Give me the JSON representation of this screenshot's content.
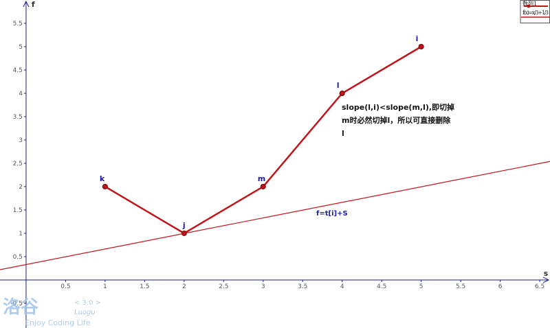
{
  "chart_data": {
    "type": "line",
    "xlabel": "s",
    "ylabel": "f",
    "xlim": [
      -0.33,
      6.63
    ],
    "ylim": [
      -1.03,
      6.0
    ],
    "xticks": [
      0.5,
      1,
      1.5,
      2,
      2.5,
      3,
      3.5,
      4,
      4.5,
      5,
      5.5,
      6,
      6.5
    ],
    "yticks": [
      -0.5,
      0.5,
      1,
      1.5,
      2,
      2.5,
      3,
      3.5,
      4,
      4.5,
      5,
      5.5
    ],
    "series": [
      {
        "name": "数列1",
        "color": "#c0141a",
        "x": [
          1,
          2,
          3,
          4,
          5
        ],
        "values": [
          2,
          1,
          2,
          4,
          5
        ],
        "point_labels": [
          "k",
          "j",
          "m",
          "l",
          "i"
        ]
      },
      {
        "name": "f(x)=x/3+1/3",
        "color": "#c0141a",
        "x": [
          -0.33,
          6.63
        ],
        "values": [
          0.22,
          2.54
        ]
      }
    ],
    "line_label": "f=t[i]+S",
    "annotation": [
      "slope(l,i)<slope(m,l),即切掉",
      "m时必然切掉l，所以可直接删除",
      "l"
    ]
  },
  "watermark": {
    "logo": "洛谷",
    "version": "< 3.0 >",
    "brand": "Luogu",
    "slogan": "Enjoy Coding Life"
  }
}
